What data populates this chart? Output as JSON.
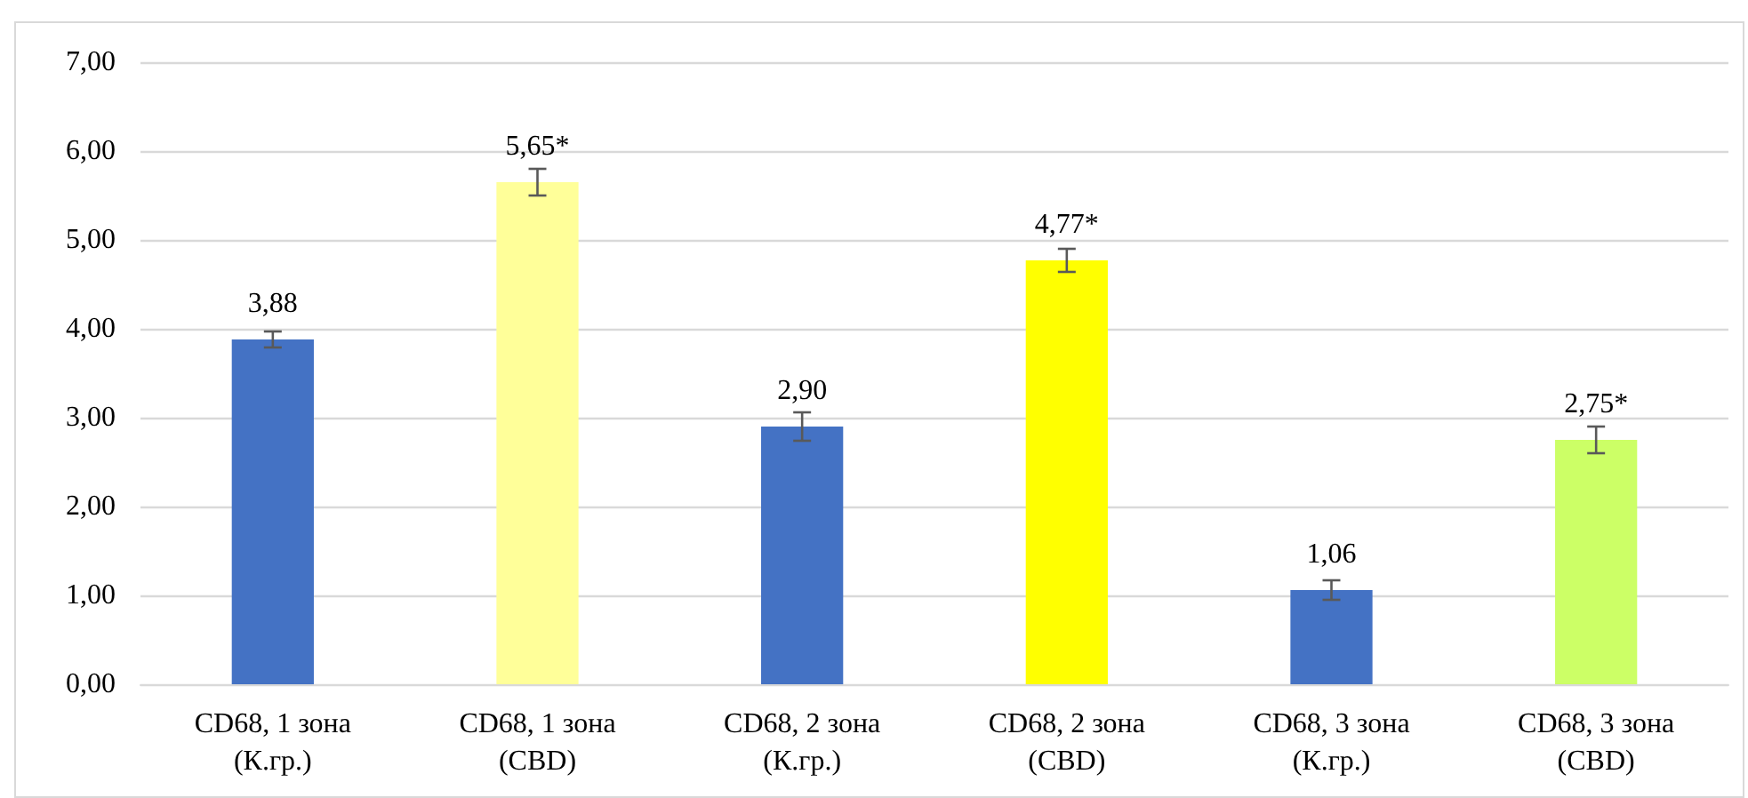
{
  "chart_data": {
    "type": "bar",
    "categories": [
      "CD68, 1 зона\n(К.гр.)",
      "CD68, 1 зона\n(CBD)",
      "CD68, 2 зона\n(К.гр.)",
      "CD68, 2 зона\n(CBD)",
      "CD68, 3 зона\n(К.гр.)",
      "CD68, 3 зона\n(CBD)"
    ],
    "values": [
      3.88,
      5.65,
      2.9,
      4.77,
      1.06,
      2.75
    ],
    "colors": [
      "#4472c4",
      "#ffff99",
      "#4472c4",
      "#ffff00",
      "#4472c4",
      "#ccff66"
    ],
    "errors": [
      0.09,
      0.15,
      0.16,
      0.13,
      0.11,
      0.15
    ],
    "value_labels": [
      "3,88",
      "5,65*",
      "2,90",
      "4,77*",
      "1,06",
      "2,75*"
    ],
    "ylim": [
      0,
      7
    ],
    "yticks": [
      {
        "value": 0,
        "label": "0,00"
      },
      {
        "value": 1,
        "label": "1,00"
      },
      {
        "value": 2,
        "label": "2,00"
      },
      {
        "value": 3,
        "label": "3,00"
      },
      {
        "value": 4,
        "label": "4,00"
      },
      {
        "value": 5,
        "label": "5,00"
      },
      {
        "value": 6,
        "label": "6,00"
      },
      {
        "value": 7,
        "label": "7,00"
      }
    ],
    "grid": "y"
  }
}
